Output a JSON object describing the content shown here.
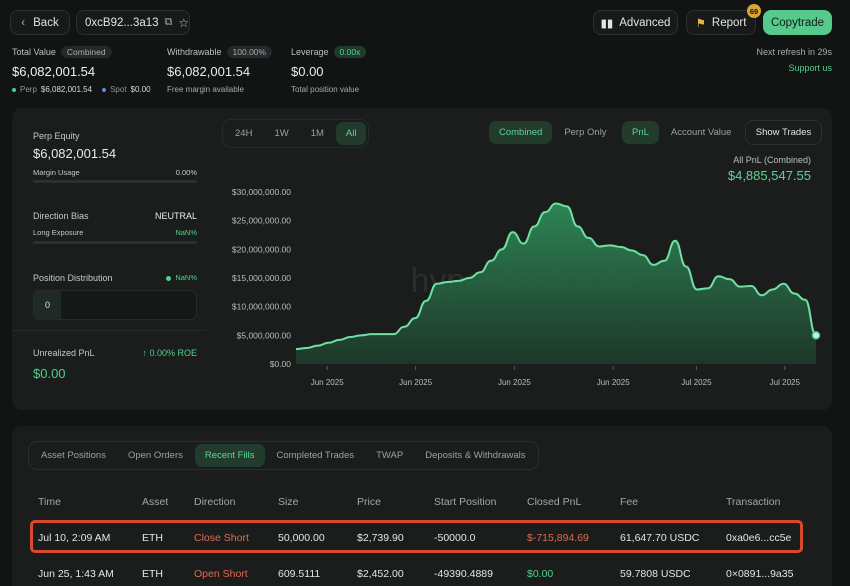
{
  "header": {
    "back_label": "Back",
    "address": "0xcB92...3a13",
    "advanced_label": "Advanced",
    "report_label": "Report",
    "report_badge": "69",
    "copytrade_label": "Copytrade",
    "next_refresh": "Next refresh in 29s",
    "support": "Support us"
  },
  "summary": {
    "total_value_label": "Total Value",
    "total_value_badge": "Combined",
    "total_value": "$6,082,001.54",
    "perp_label": "Perp",
    "perp_value": "$6,082,001.54",
    "spot_label": "Spot",
    "spot_value": "$0.00",
    "withdrawable_label": "Withdrawable",
    "withdrawable_badge": "100.00%",
    "withdrawable_value": "$6,082,001.54",
    "withdrawable_sub": "Free margin available",
    "leverage_label": "Leverage",
    "leverage_badge": "0.00x",
    "leverage_value": "$0.00",
    "leverage_sub": "Total position value"
  },
  "side": {
    "perp_equity_label": "Perp Equity",
    "perp_equity": "$6,082,001.54",
    "margin_usage_label": "Margin Usage",
    "margin_usage": "0.00%",
    "margin_usage_fraction": 0,
    "direction_bias_label": "Direction Bias",
    "direction_bias": "NEUTRAL",
    "long_exposure_label": "Long Exposure",
    "long_exposure": "NaN%",
    "position_distribution_label": "Position Distribution",
    "position_distribution_value": "NaN%",
    "position_count": "0",
    "unrealized_label": "Unrealized PnL",
    "roe": "↑ 0.00% ROE",
    "unrealized_value": "$0.00"
  },
  "chart_controls": {
    "range_tabs": [
      "24H",
      "1W",
      "1M",
      "All"
    ],
    "active_range": "All",
    "mode_tabs": [
      "Combined",
      "Perp Only"
    ],
    "active_mode": "Combined",
    "metric_tabs": [
      "PnL",
      "Account Value"
    ],
    "active_metric": "PnL",
    "show_trades": "Show Trades",
    "pnl_label": "All PnL (Combined)",
    "pnl_value": "$4,885,547.55"
  },
  "watermark": "hyperdash.info",
  "chart_data": {
    "type": "area",
    "title": "",
    "xlabel": "",
    "ylabel": "",
    "ylim": [
      0,
      30000000
    ],
    "y_ticks": [
      "$0.00",
      "$5,000,000.00",
      "$10,000,000.00",
      "$15,000,000.00",
      "$20,000,000.00",
      "$25,000,000.00",
      "$30,000,000.00"
    ],
    "x_ticks": [
      "Jun 2025",
      "Jun 2025",
      "Jun 2025",
      "Jun 2025",
      "Jul 2025",
      "Jul 2025"
    ],
    "grid": false,
    "color": "#4fd18b",
    "series": [
      {
        "values": [
          2600000,
          2800000,
          3200000,
          3700000,
          4200000,
          4700000,
          5000000,
          5200000,
          5200000,
          5200000,
          6500000,
          8000000,
          11000000,
          14000000,
          14300000,
          14500000,
          15000000,
          16000000,
          18000000,
          20000000,
          23000000,
          21000000,
          24000000,
          26500000,
          28000000,
          27500000,
          24000000,
          22000000,
          20500000,
          20700000,
          20400000,
          19800000,
          19000000,
          17300000,
          18000000,
          21500000,
          17000000,
          13000000,
          13200000,
          15300000,
          14800000,
          13500000,
          13600000,
          12000000,
          13000000,
          14000000,
          12300000,
          11200000,
          5000000
        ]
      }
    ]
  },
  "tabs_bottom": [
    "Asset Positions",
    "Open Orders",
    "Recent Fills",
    "Completed Trades",
    "TWAP",
    "Deposits & Withdrawals"
  ],
  "active_bottom_tab": "Recent Fills",
  "table": {
    "headers": [
      "Time",
      "Asset",
      "Direction",
      "Size",
      "Price",
      "Start Position",
      "Closed PnL",
      "Fee",
      "Transaction"
    ],
    "rows": [
      {
        "time": "Jul 10, 2:09 AM",
        "asset": "ETH",
        "direction": "Close Short",
        "size": "50,000.00",
        "price": "$2,739.90",
        "start": "-50000.0",
        "pnl": "$-715,894.69",
        "fee": "61,647.70 USDC",
        "tx": "0xa0e6...cc5e"
      },
      {
        "time": "Jun 25, 1:43 AM",
        "asset": "ETH",
        "direction": "Open Short",
        "size": "609.5111",
        "price": "$2,452.00",
        "start": "-49390.4889",
        "pnl": "$0.00",
        "fee": "59.7808 USDC",
        "tx": "0×0891...9a35"
      }
    ]
  }
}
